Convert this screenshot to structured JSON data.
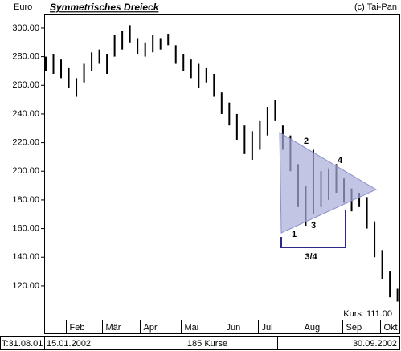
{
  "chart_data": {
    "type": "hilo",
    "title": "Symmetrisches Dreieck",
    "y_label": "Euro",
    "copyright": "(c) Tai-Pan",
    "last_price": "Kurs: 111.00",
    "color": "#000000",
    "x": [
      0,
      4,
      8,
      12,
      16,
      20,
      24,
      28,
      32,
      36,
      40,
      44,
      48,
      52,
      56,
      60,
      64,
      68,
      72,
      76,
      80,
      84,
      88,
      92,
      96,
      100,
      104,
      108,
      112,
      116,
      120,
      124,
      128,
      132,
      136,
      140,
      144,
      148,
      152,
      156,
      160,
      164,
      168,
      172,
      176,
      180,
      184
    ],
    "low": [
      270,
      268,
      265,
      258,
      252,
      262,
      270,
      275,
      268,
      280,
      285,
      290,
      282,
      280,
      283,
      285,
      288,
      275,
      270,
      265,
      258,
      262,
      252,
      240,
      232,
      222,
      212,
      208,
      215,
      225,
      235,
      215,
      200,
      175,
      162,
      170,
      175,
      180,
      185,
      178,
      172,
      175,
      160,
      140,
      125,
      112,
      109
    ],
    "high": [
      280,
      282,
      278,
      272,
      265,
      275,
      283,
      285,
      282,
      295,
      298,
      302,
      293,
      290,
      295,
      293,
      296,
      288,
      282,
      278,
      275,
      272,
      268,
      255,
      248,
      240,
      232,
      228,
      235,
      245,
      250,
      232,
      225,
      205,
      190,
      215,
      200,
      202,
      205,
      195,
      188,
      185,
      182,
      165,
      145,
      130,
      118
    ],
    "xlim": [
      0,
      185
    ],
    "ylim": [
      96.4,
      309.5
    ],
    "yticks": [
      {
        "value": 120,
        "label": "120.00"
      },
      {
        "value": 140,
        "label": "140.00"
      },
      {
        "value": 160,
        "label": "160.00"
      },
      {
        "value": 180,
        "label": "180.00"
      },
      {
        "value": 200,
        "label": "200.00"
      },
      {
        "value": 220,
        "label": "220.00"
      },
      {
        "value": 240,
        "label": "240.00"
      },
      {
        "value": 260,
        "label": "260.00"
      },
      {
        "value": 280,
        "label": "280.00"
      },
      {
        "value": 300,
        "label": "300.00"
      }
    ],
    "xticks": [
      {
        "value": 10.5,
        "label": "Feb"
      },
      {
        "value": 29.3,
        "label": "Mär"
      },
      {
        "value": 49.4,
        "label": "Apr"
      },
      {
        "value": 70.7,
        "label": "Mai"
      },
      {
        "value": 92.5,
        "label": "Jun"
      },
      {
        "value": 110.9,
        "label": "Jul"
      },
      {
        "value": 133.1,
        "label": "Aug"
      },
      {
        "value": 155.2,
        "label": "Sep"
      },
      {
        "value": 174.9,
        "label": "Okt"
      }
    ],
    "annotations": [
      "1",
      "2",
      "3",
      "4",
      "3/4"
    ],
    "footer": [
      "T:31.08.01",
      "15.01.2002",
      "185 Kurse",
      "30.09.2002"
    ]
  }
}
